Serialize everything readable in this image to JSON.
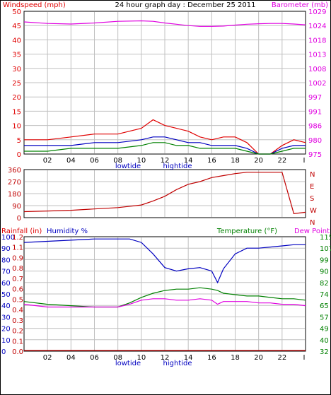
{
  "header": {
    "left_label": "Windspeed (mph)",
    "title": "24 hour graph day : December 25 2011",
    "right_label": "Barometer (mb)"
  },
  "colors": {
    "wind": "#e00000",
    "wind_avg": "#0000c0",
    "wind_gust_low": "#008000",
    "baro": "#e000e0",
    "dir": "#c00000",
    "humidity": "#0000c0",
    "temp": "#008000",
    "dew": "#e000e0",
    "rain": "#c00000",
    "grid": "#c0c0c0"
  },
  "time_axis": {
    "ticks": [
      "02",
      "04",
      "06",
      "08",
      "10",
      "12",
      "14",
      "16",
      "18",
      "20",
      "22",
      "I"
    ],
    "markers": [
      "lowtide",
      "hightide"
    ]
  },
  "chart_data": [
    {
      "type": "line",
      "title": "24 hour graph day : December 25 2011",
      "xlabel": "",
      "ylabel": "Windspeed (mph)",
      "y2label": "Barometer (mb)",
      "ylim": [
        0,
        50
      ],
      "y_ticks": [
        "0",
        "5",
        "10",
        "15",
        "20",
        "25",
        "30",
        "35",
        "40",
        "45",
        "50"
      ],
      "y2lim": [
        975,
        1029
      ],
      "y2_ticks": [
        "975",
        "980",
        "986",
        "991",
        "997",
        "1002",
        "1008",
        "1013",
        "1018",
        "1024",
        "1029"
      ],
      "x_ticks": [
        "02",
        "04",
        "06",
        "08",
        "10",
        "12",
        "14",
        "16",
        "18",
        "20",
        "22",
        "I"
      ],
      "x": [
        0,
        2,
        4,
        6,
        8,
        10,
        11,
        12,
        13,
        14,
        15,
        16,
        17,
        18,
        19,
        20,
        21,
        22,
        23,
        24
      ],
      "series": [
        {
          "name": "Windspeed (mph)",
          "axis": "left",
          "values": [
            5,
            5,
            6,
            7,
            7,
            9,
            12,
            10,
            9,
            8,
            6,
            5,
            6,
            6,
            4,
            0,
            0,
            3,
            5,
            4
          ]
        },
        {
          "name": "",
          "axis": "left",
          "values": [
            3,
            3,
            3,
            4,
            4,
            5,
            6,
            6,
            5,
            4,
            4,
            3,
            3,
            3,
            2,
            0,
            0,
            2,
            3,
            3
          ]
        },
        {
          "name": "",
          "axis": "left",
          "values": [
            1,
            1,
            2,
            2,
            2,
            3,
            4,
            4,
            3,
            3,
            2,
            2,
            2,
            2,
            1,
            0,
            0,
            1,
            2,
            2
          ]
        },
        {
          "name": "Barometer (mb)",
          "axis": "right",
          "values": [
            1025.0,
            1024.4,
            1024.2,
            1024.6,
            1025.2,
            1025.4,
            1025.2,
            1024.6,
            1024.1,
            1023.6,
            1023.3,
            1023.3,
            1023.4,
            1023.8,
            1024.1,
            1024.3,
            1024.4,
            1024.4,
            1024.2,
            1023.9
          ]
        }
      ]
    },
    {
      "type": "line",
      "ylim": [
        0,
        360
      ],
      "y_ticks": [
        "0",
        "90",
        "180",
        "270",
        "360"
      ],
      "y2_ticks": [
        "N",
        "W",
        "S",
        "E",
        "N"
      ],
      "x": [
        0,
        2,
        4,
        6,
        8,
        10,
        11,
        12,
        13,
        14,
        15,
        16,
        17,
        18,
        19,
        20,
        21,
        22,
        23,
        24
      ],
      "series": [
        {
          "name": "",
          "values": [
            45,
            50,
            55,
            65,
            75,
            95,
            125,
            160,
            210,
            250,
            270,
            300,
            315,
            330,
            340,
            340,
            340,
            340,
            30,
            40
          ]
        }
      ]
    },
    {
      "type": "line",
      "y_ticks": [
        "0",
        "10",
        "20",
        "30",
        "40",
        "50",
        "60",
        "70",
        "80",
        "90",
        "100"
      ],
      "y_ticks_rain": [
        "0.0",
        "0.1",
        "0.2",
        "0.3",
        "0.4",
        "0.5",
        "0.6",
        "0.7",
        "0.8",
        "0.9",
        "1.1",
        "1.2"
      ],
      "y2_ticks": [
        "32",
        "40",
        "49",
        "57",
        "65",
        "74",
        "82",
        "90",
        "99",
        "107",
        "115"
      ],
      "ylim": [
        0,
        100
      ],
      "y2lim": [
        32,
        115
      ],
      "x": [
        0,
        2,
        4,
        6,
        8,
        9,
        10,
        11,
        12,
        13,
        14,
        15,
        16,
        16.5,
        17,
        18,
        19,
        20,
        21,
        22,
        23,
        24
      ],
      "series": [
        {
          "name": "Humidity %",
          "axis": "left",
          "values": [
            95,
            96,
            97,
            98,
            98,
            98,
            95,
            85,
            73,
            70,
            72,
            73,
            70,
            60,
            72,
            85,
            90,
            90,
            91,
            92,
            93,
            93
          ]
        },
        {
          "name": "Temperature (°F)",
          "axis": "right",
          "values": [
            68,
            66,
            65,
            64,
            64,
            67,
            71,
            74,
            76,
            77,
            77,
            78,
            77,
            76,
            74,
            73,
            72,
            72,
            71,
            70,
            70,
            69
          ]
        },
        {
          "name": "Dew Point",
          "axis": "right",
          "values": [
            66,
            64,
            64,
            64,
            64,
            66,
            69,
            70,
            70,
            69,
            69,
            70,
            69,
            66,
            68,
            68,
            68,
            67,
            67,
            66,
            66,
            65
          ]
        },
        {
          "name": "Rainfall (in)",
          "axis": "rain",
          "values": [
            0,
            0,
            0,
            0,
            0,
            0,
            0,
            0,
            0,
            0,
            0,
            0,
            0,
            0,
            0,
            0,
            0,
            0,
            0,
            0,
            0,
            0
          ]
        }
      ],
      "labels": {
        "rain": "Rainfall (in)",
        "humidity": "Humidity %",
        "temp": "Temperature (°F)",
        "dew": "Dew Point"
      }
    }
  ]
}
